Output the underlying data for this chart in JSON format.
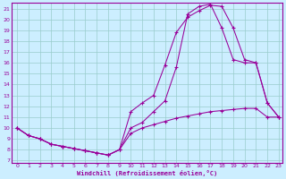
{
  "xlabel": "Windchill (Refroidissement éolien,°C)",
  "bg_color": "#cceeff",
  "line_color": "#990099",
  "grid_color": "#99cccc",
  "xlim": [
    -0.5,
    23.3
  ],
  "ylim": [
    6.8,
    21.5
  ],
  "xticks": [
    0,
    1,
    2,
    3,
    4,
    5,
    6,
    7,
    8,
    9,
    10,
    11,
    12,
    13,
    14,
    15,
    16,
    17,
    18,
    19,
    20,
    21,
    22,
    23
  ],
  "yticks": [
    7,
    8,
    9,
    10,
    11,
    12,
    13,
    14,
    15,
    16,
    17,
    18,
    19,
    20,
    21
  ],
  "line1_x": [
    0,
    1,
    2,
    3,
    4,
    5,
    6,
    7,
    8,
    9,
    10,
    11,
    12,
    13,
    14,
    15,
    16,
    17,
    18,
    19,
    20,
    21,
    22,
    23
  ],
  "line1_y": [
    10.0,
    9.3,
    9.0,
    8.5,
    8.3,
    8.1,
    7.9,
    7.7,
    7.5,
    8.0,
    9.5,
    10.0,
    10.3,
    10.6,
    10.9,
    11.1,
    11.3,
    11.5,
    11.6,
    11.7,
    11.8,
    11.8,
    11.0,
    11.0
  ],
  "line2_x": [
    0,
    1,
    2,
    3,
    4,
    5,
    6,
    7,
    8,
    9,
    10,
    11,
    12,
    13,
    14,
    15,
    16,
    17,
    18,
    19,
    20,
    21,
    22,
    23
  ],
  "line2_y": [
    10.0,
    9.3,
    9.0,
    8.5,
    8.3,
    8.1,
    7.9,
    7.7,
    7.5,
    8.0,
    11.5,
    12.3,
    13.0,
    15.8,
    18.8,
    20.2,
    20.8,
    21.3,
    21.2,
    19.2,
    16.3,
    16.0,
    12.3,
    11.0
  ],
  "line3_x": [
    0,
    1,
    2,
    3,
    4,
    5,
    6,
    7,
    8,
    9,
    10,
    11,
    12,
    13,
    14,
    15,
    16,
    17,
    18,
    19,
    20,
    21,
    22,
    23
  ],
  "line3_y": [
    10.0,
    9.3,
    9.0,
    8.5,
    8.3,
    8.1,
    7.9,
    7.7,
    7.5,
    8.0,
    10.0,
    10.5,
    11.5,
    12.5,
    15.6,
    20.5,
    21.2,
    21.4,
    19.2,
    16.3,
    16.0,
    16.0,
    12.3,
    11.0
  ]
}
